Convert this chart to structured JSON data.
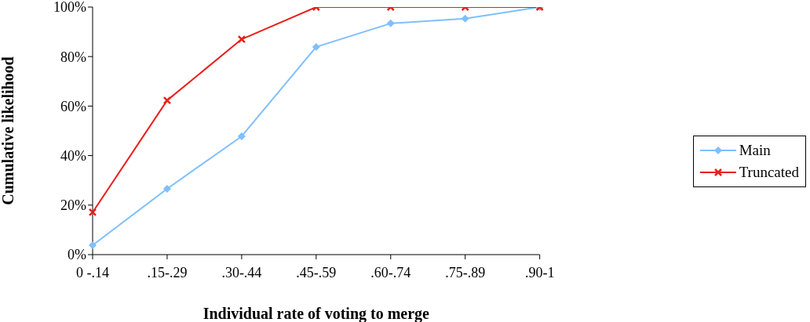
{
  "chart_data": {
    "type": "line",
    "xlabel": "Individual rate of voting to merge",
    "ylabel": "Cumulative likelihood",
    "categories": [
      "0 -.14",
      ".15-.29",
      ".30-.44",
      ".45-.59",
      ".60-.74",
      ".75-.89",
      ".90-1"
    ],
    "series": [
      {
        "name": "Main",
        "color": "#7fbfff",
        "marker": "diamond",
        "values": [
          3.8,
          26.6,
          47.8,
          83.9,
          93.4,
          95.3,
          100
        ]
      },
      {
        "name": "Truncated",
        "color": "#e8201c",
        "marker": "cross",
        "values": [
          17.1,
          62.3,
          87,
          100,
          100,
          100,
          100
        ]
      }
    ],
    "ylim": [
      0,
      100
    ],
    "yticks": [
      {
        "value": 0,
        "label": "0%"
      },
      {
        "value": 20,
        "label": "20%"
      },
      {
        "value": 40,
        "label": "40%"
      },
      {
        "value": 60,
        "label": "60%"
      },
      {
        "value": 80,
        "label": "80%"
      },
      {
        "value": 100,
        "label": "100%"
      }
    ],
    "grid": false,
    "legend": "right"
  }
}
